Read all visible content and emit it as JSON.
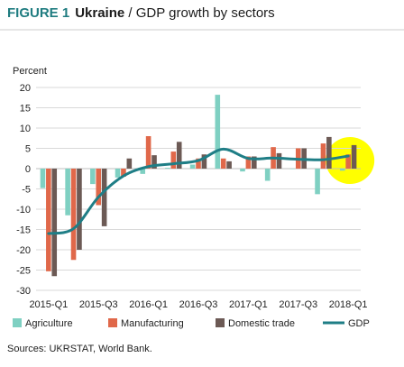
{
  "figure": {
    "label": "FIGURE 1",
    "country": "Ukraine",
    "separator": " / ",
    "subtitle": "GDP growth by sectors"
  },
  "source": "Sources: UKRSTAT, World Bank.",
  "colors": {
    "title_accent": "#1f7c80",
    "agriculture": "#7fd0c2",
    "manufacturing": "#e0684a",
    "domestic_trade": "#6c5a55",
    "gdp": "#1f7e86",
    "highlight": "#ffff00",
    "grid": "#d9d9d9"
  },
  "chart_data": {
    "type": "bar",
    "ylabel": "Percent",
    "ylim": [
      -30,
      20
    ],
    "yticks": [
      20,
      15,
      10,
      5,
      0,
      -5,
      -10,
      -15,
      -20,
      -25,
      -30
    ],
    "grid": true,
    "legend_position": "bottom",
    "categories": [
      "2015-Q1",
      "2015-Q2",
      "2015-Q3",
      "2015-Q4",
      "2016-Q1",
      "2016-Q2",
      "2016-Q3",
      "2016-Q4",
      "2017-Q1",
      "2017-Q2",
      "2017-Q3",
      "2017-Q4",
      "2018-Q1"
    ],
    "xtick_labels": [
      "2015-Q1",
      "2015-Q3",
      "2016-Q1",
      "2016-Q3",
      "2017-Q1",
      "2017-Q3",
      "2018-Q1"
    ],
    "series": [
      {
        "name": "Agriculture",
        "kind": "bar",
        "values": [
          -4.8,
          -11.5,
          -3.8,
          -2.2,
          -1.3,
          0.2,
          1.0,
          18.2,
          -0.7,
          -3.0,
          0.0,
          -6.3,
          -0.5
        ]
      },
      {
        "name": "Manufacturing",
        "kind": "bar",
        "values": [
          -25.3,
          -22.5,
          -9.0,
          -2.0,
          8.0,
          4.2,
          2.5,
          2.5,
          3.0,
          5.3,
          5.0,
          6.2,
          3.5
        ]
      },
      {
        "name": "Domestic trade",
        "kind": "bar",
        "values": [
          -26.5,
          -20.0,
          -14.2,
          2.5,
          3.3,
          6.6,
          3.5,
          1.8,
          3.0,
          3.8,
          5.0,
          7.8,
          5.8
        ]
      },
      {
        "name": "GDP",
        "kind": "line",
        "values": [
          -16.0,
          -14.8,
          -7.0,
          -1.8,
          0.5,
          1.2,
          2.0,
          4.8,
          2.5,
          2.6,
          2.3,
          2.2,
          3.1
        ]
      }
    ],
    "annotations": [
      {
        "type": "highlight-circle",
        "category": "2018-Q1",
        "color": "#ffff00"
      }
    ]
  }
}
